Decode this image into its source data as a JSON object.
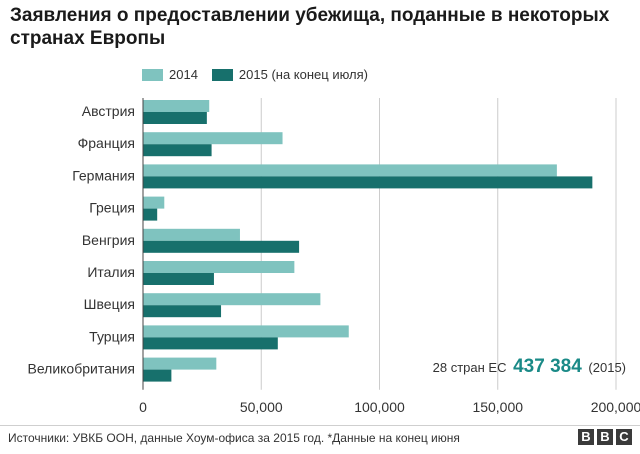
{
  "title": "Заявления о предоставлении убежища, поданные в некоторых странах Европы",
  "legend": [
    {
      "label": "2014",
      "color": "#7fc3bf"
    },
    {
      "label": "2015 (на конец июля)",
      "color": "#17706c"
    }
  ],
  "annotation": {
    "prefix": "28 стран ЕС",
    "value": "437 384",
    "suffix": "(2015)"
  },
  "source": "Источники: УВКБ ООН, данные Хоум-офиса за 2015 год. *Данные на конец июня",
  "logo": [
    "B",
    "B",
    "C"
  ],
  "chart_data": {
    "type": "bar",
    "orientation": "horizontal",
    "categories": [
      "Австрия",
      "Франция",
      "Германия",
      "Греция",
      "Венгрия",
      "Италия",
      "Швеция",
      "Турция",
      "Великобритания"
    ],
    "series": [
      {
        "name": "2014",
        "color": "#7fc3bf",
        "values": [
          28000,
          59000,
          175000,
          9000,
          41000,
          64000,
          75000,
          87000,
          31000
        ]
      },
      {
        "name": "2015 (на конец июля)",
        "color": "#17706c",
        "values": [
          27000,
          29000,
          190000,
          6000,
          66000,
          30000,
          33000,
          57000,
          12000
        ]
      }
    ],
    "xlim": [
      0,
      200000
    ],
    "xticks": [
      0,
      50000,
      100000,
      150000,
      200000
    ],
    "xtick_labels": [
      "0",
      "50,000",
      "100,000",
      "150,000",
      "200,000"
    ],
    "grid": true
  }
}
